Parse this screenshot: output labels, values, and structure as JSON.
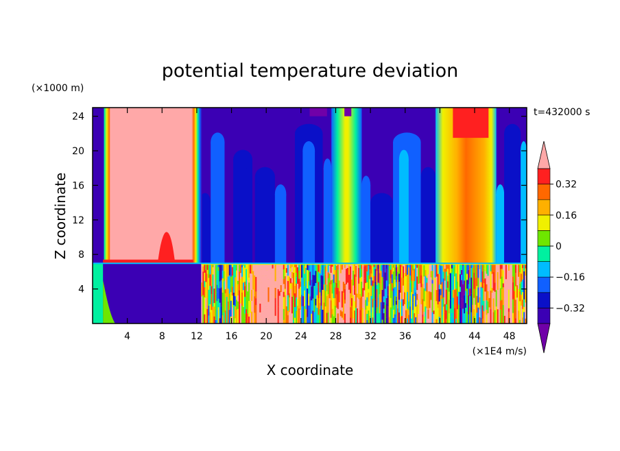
{
  "chart_data": {
    "type": "heatmap",
    "title": "potential temperature deviation",
    "xlabel": "X coordinate",
    "ylabel": "Z coordinate",
    "x_unit": "(×1E4 m/s)",
    "y_unit": "(×1000 m)",
    "time_label": "t=432000 s",
    "xlim": [
      0,
      50
    ],
    "ylim": [
      0,
      25
    ],
    "x_ticks": [
      4,
      8,
      12,
      16,
      20,
      24,
      28,
      32,
      36,
      40,
      44,
      48
    ],
    "y_ticks": [
      4,
      8,
      12,
      16,
      20,
      24
    ],
    "colorbar": {
      "levels": [
        -0.4,
        -0.32,
        -0.24,
        -0.16,
        -0.08,
        0,
        0.08,
        0.16,
        0.24,
        0.32,
        0.4
      ],
      "tick_labels": [
        "0.32",
        "0.16",
        "0",
        "−0.16",
        "−0.32"
      ],
      "colors": [
        "#7000a8",
        "#3b00b4",
        "#0a10c8",
        "#1060ff",
        "#00bcff",
        "#00f0a0",
        "#6ee600",
        "#f0f000",
        "#ffb000",
        "#ff6800",
        "#ff2020",
        "#ffa8a8"
      ],
      "extend": "both"
    },
    "regions": [
      {
        "name": "background-upper",
        "x": [
          0,
          50
        ],
        "z": [
          7,
          25
        ],
        "value": -0.34
      },
      {
        "name": "background-lower",
        "x": [
          0,
          50
        ],
        "z": [
          0,
          7
        ],
        "value": 0.1
      },
      {
        "name": "left-edge-column",
        "x": [
          0,
          1.3
        ],
        "z": [
          7,
          25
        ],
        "value": -0.36
      },
      {
        "name": "warm-column-left",
        "x": [
          2,
          11.5
        ],
        "z": [
          7,
          25
        ],
        "value": 0.42
      },
      {
        "name": "cold-pool-left",
        "x": [
          0,
          12.5
        ],
        "z": [
          0,
          7
        ],
        "value": -0.38
      },
      {
        "name": "warm-bubble",
        "x": [
          7.5,
          9.5
        ],
        "z": [
          7,
          10.5
        ],
        "value": 0.34
      },
      {
        "name": "warm-plume-x29",
        "x": [
          27.5,
          31
        ],
        "z": [
          7,
          25
        ],
        "value": 0.1
      },
      {
        "name": "warm-plume-x43",
        "x": [
          39.5,
          46.5
        ],
        "z": [
          7,
          25
        ],
        "value": 0.22
      },
      {
        "name": "turbulent-warm-lower",
        "x": [
          15,
          24
        ],
        "z": [
          0,
          7
        ],
        "value": 0.38
      }
    ]
  }
}
